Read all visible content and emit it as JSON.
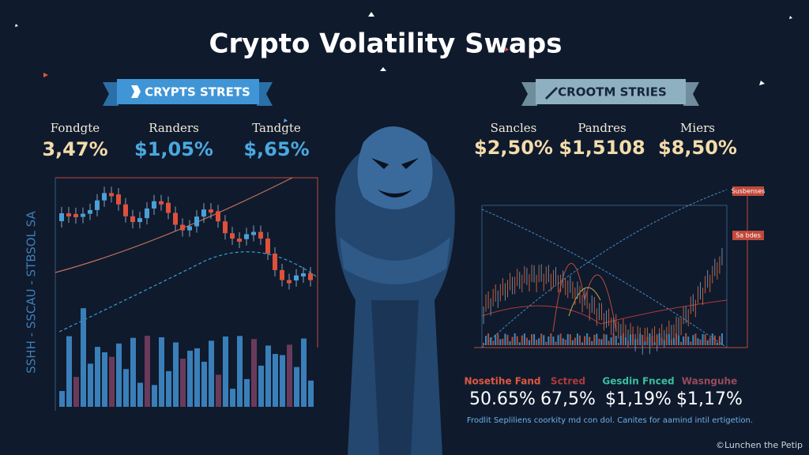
{
  "header": {
    "title": "Crypto Volatility Swaps"
  },
  "left_panel": {
    "banner": "CRYPTS STRETS",
    "stats": [
      {
        "label": "Fondgte",
        "value": "3,47%"
      },
      {
        "label": "Randers",
        "value": "$1,05%"
      },
      {
        "label": "Tandgte",
        "value": "$,65%"
      }
    ],
    "axis_label": "SSHH - SSCAU - STBSOL SA"
  },
  "right_panel": {
    "banner": "CROOTM STRIES",
    "stats": [
      {
        "label": "Sancles",
        "value": "$2,50%"
      },
      {
        "label": "Pandres",
        "value": "$1,5108"
      },
      {
        "label": "Miers",
        "value": "$8,50%"
      }
    ],
    "tags": [
      "Susbenses",
      "Sa bdes"
    ]
  },
  "bottom_stats": [
    {
      "label": "Nosetihe Fand",
      "value": "50.65%"
    },
    {
      "label": "Sctred",
      "value": "67,5%"
    },
    {
      "label": "Gesdin Fnced",
      "value": "$1,19%"
    },
    {
      "label": "Wasnguhe",
      "value": "$1,17%"
    }
  ],
  "footnote": "Frodlit Sepliliens coorkity md con dol. Canites for aamind intil ertigetion.",
  "credit": "©Lunchen the Petip"
}
